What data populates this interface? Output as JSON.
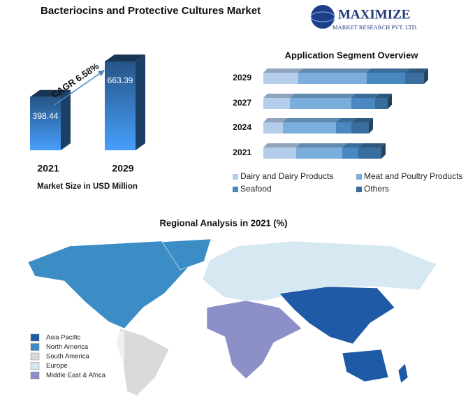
{
  "title": "Bacteriocins and Protective Cultures Market",
  "logo": {
    "name": "MAXIMIZE",
    "subtitle": "MARKET RESEARCH PVT. LTD."
  },
  "chart_data": [
    {
      "type": "bar",
      "title": "Market Size in USD Million",
      "annotation": "CAGR 6.58%",
      "categories": [
        "2021",
        "2029"
      ],
      "values": [
        398.44,
        663.39
      ],
      "color": "#2f6aa8"
    },
    {
      "type": "stacked-barh",
      "title": "Application Segment Overview",
      "categories": [
        "2029",
        "2027",
        "2024",
        "2021"
      ],
      "series": [
        {
          "name": "Dairy and Dairy Products",
          "color": "#b4cdea",
          "values": [
            50,
            38,
            28,
            47
          ]
        },
        {
          "name": "Meat and Poultry Products",
          "color": "#7aaedc",
          "values": [
            98,
            88,
            76,
            66
          ]
        },
        {
          "name": "Seafood",
          "color": "#4a88c2",
          "values": [
            55,
            34,
            22,
            23
          ]
        },
        {
          "name": "Others",
          "color": "#3a6e9e",
          "values": [
            27,
            18,
            25,
            33
          ]
        }
      ]
    },
    {
      "type": "map",
      "title": "Regional Analysis in 2021 (%)",
      "series": [
        {
          "name": "Asia Pacific",
          "color": "#1f5aa6"
        },
        {
          "name": "North America",
          "color": "#3c8dc5"
        },
        {
          "name": "South America",
          "color": "#d9d9d9"
        },
        {
          "name": "Europe",
          "color": "#d6e8f2"
        },
        {
          "name": "Middle East & Africa",
          "color": "#8c8fc8"
        }
      ]
    }
  ]
}
